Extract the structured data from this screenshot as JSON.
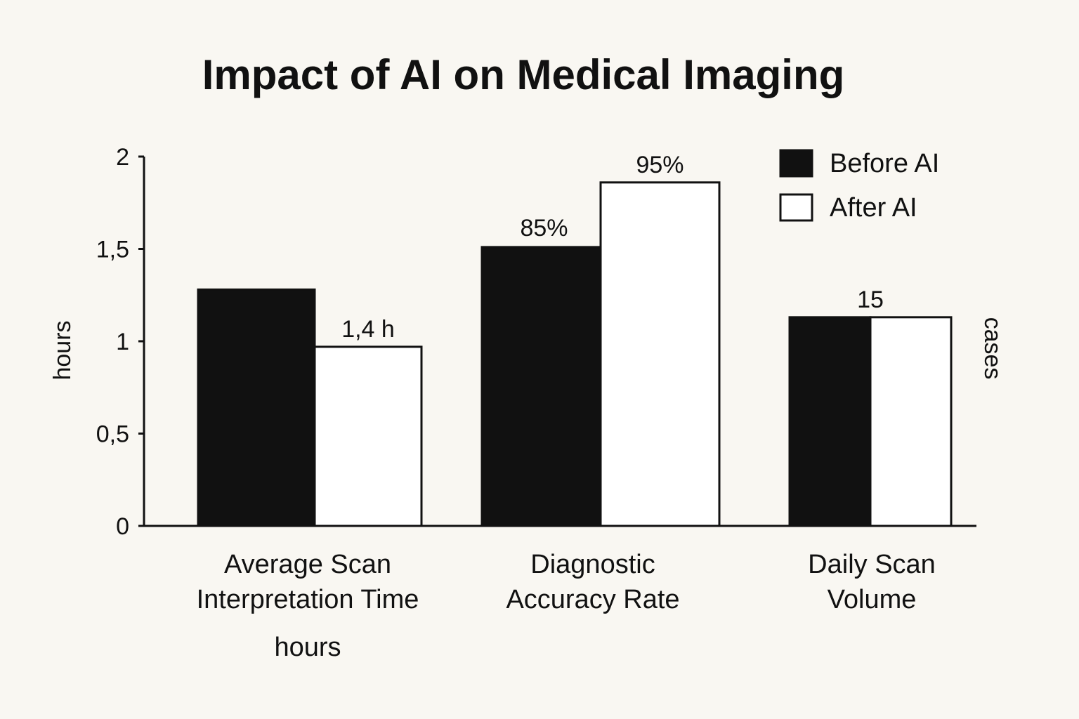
{
  "chart_data": {
    "type": "bar",
    "title": "Impact of AI on Medical Imaging",
    "categories": [
      "Average Scan\nInterpretation Time",
      "Diagnostic\nAccuracy Rate",
      "Daily Scan\nVolume"
    ],
    "series": [
      {
        "name": "Before AI",
        "values": [
          1.28,
          1.51,
          1.13
        ],
        "data_labels": [
          "",
          "85%",
          ""
        ],
        "color": "#111111"
      },
      {
        "name": "After AI",
        "values": [
          0.97,
          1.86,
          1.13
        ],
        "data_labels": [
          "1,4 h",
          "95%",
          "15"
        ],
        "color": "#ffffff"
      }
    ],
    "ylim": [
      0,
      2
    ],
    "yticks": [
      {
        "value": 0,
        "label": "0"
      },
      {
        "value": 0.5,
        "label": "0,5"
      },
      {
        "value": 1,
        "label": "1"
      },
      {
        "value": 1.5,
        "label": "1,5"
      },
      {
        "value": 2,
        "label": "2"
      }
    ],
    "ylabel": "hours",
    "y2label": "cases",
    "xnote": "hours",
    "legend": {
      "position": "top-right"
    },
    "grid": false
  }
}
